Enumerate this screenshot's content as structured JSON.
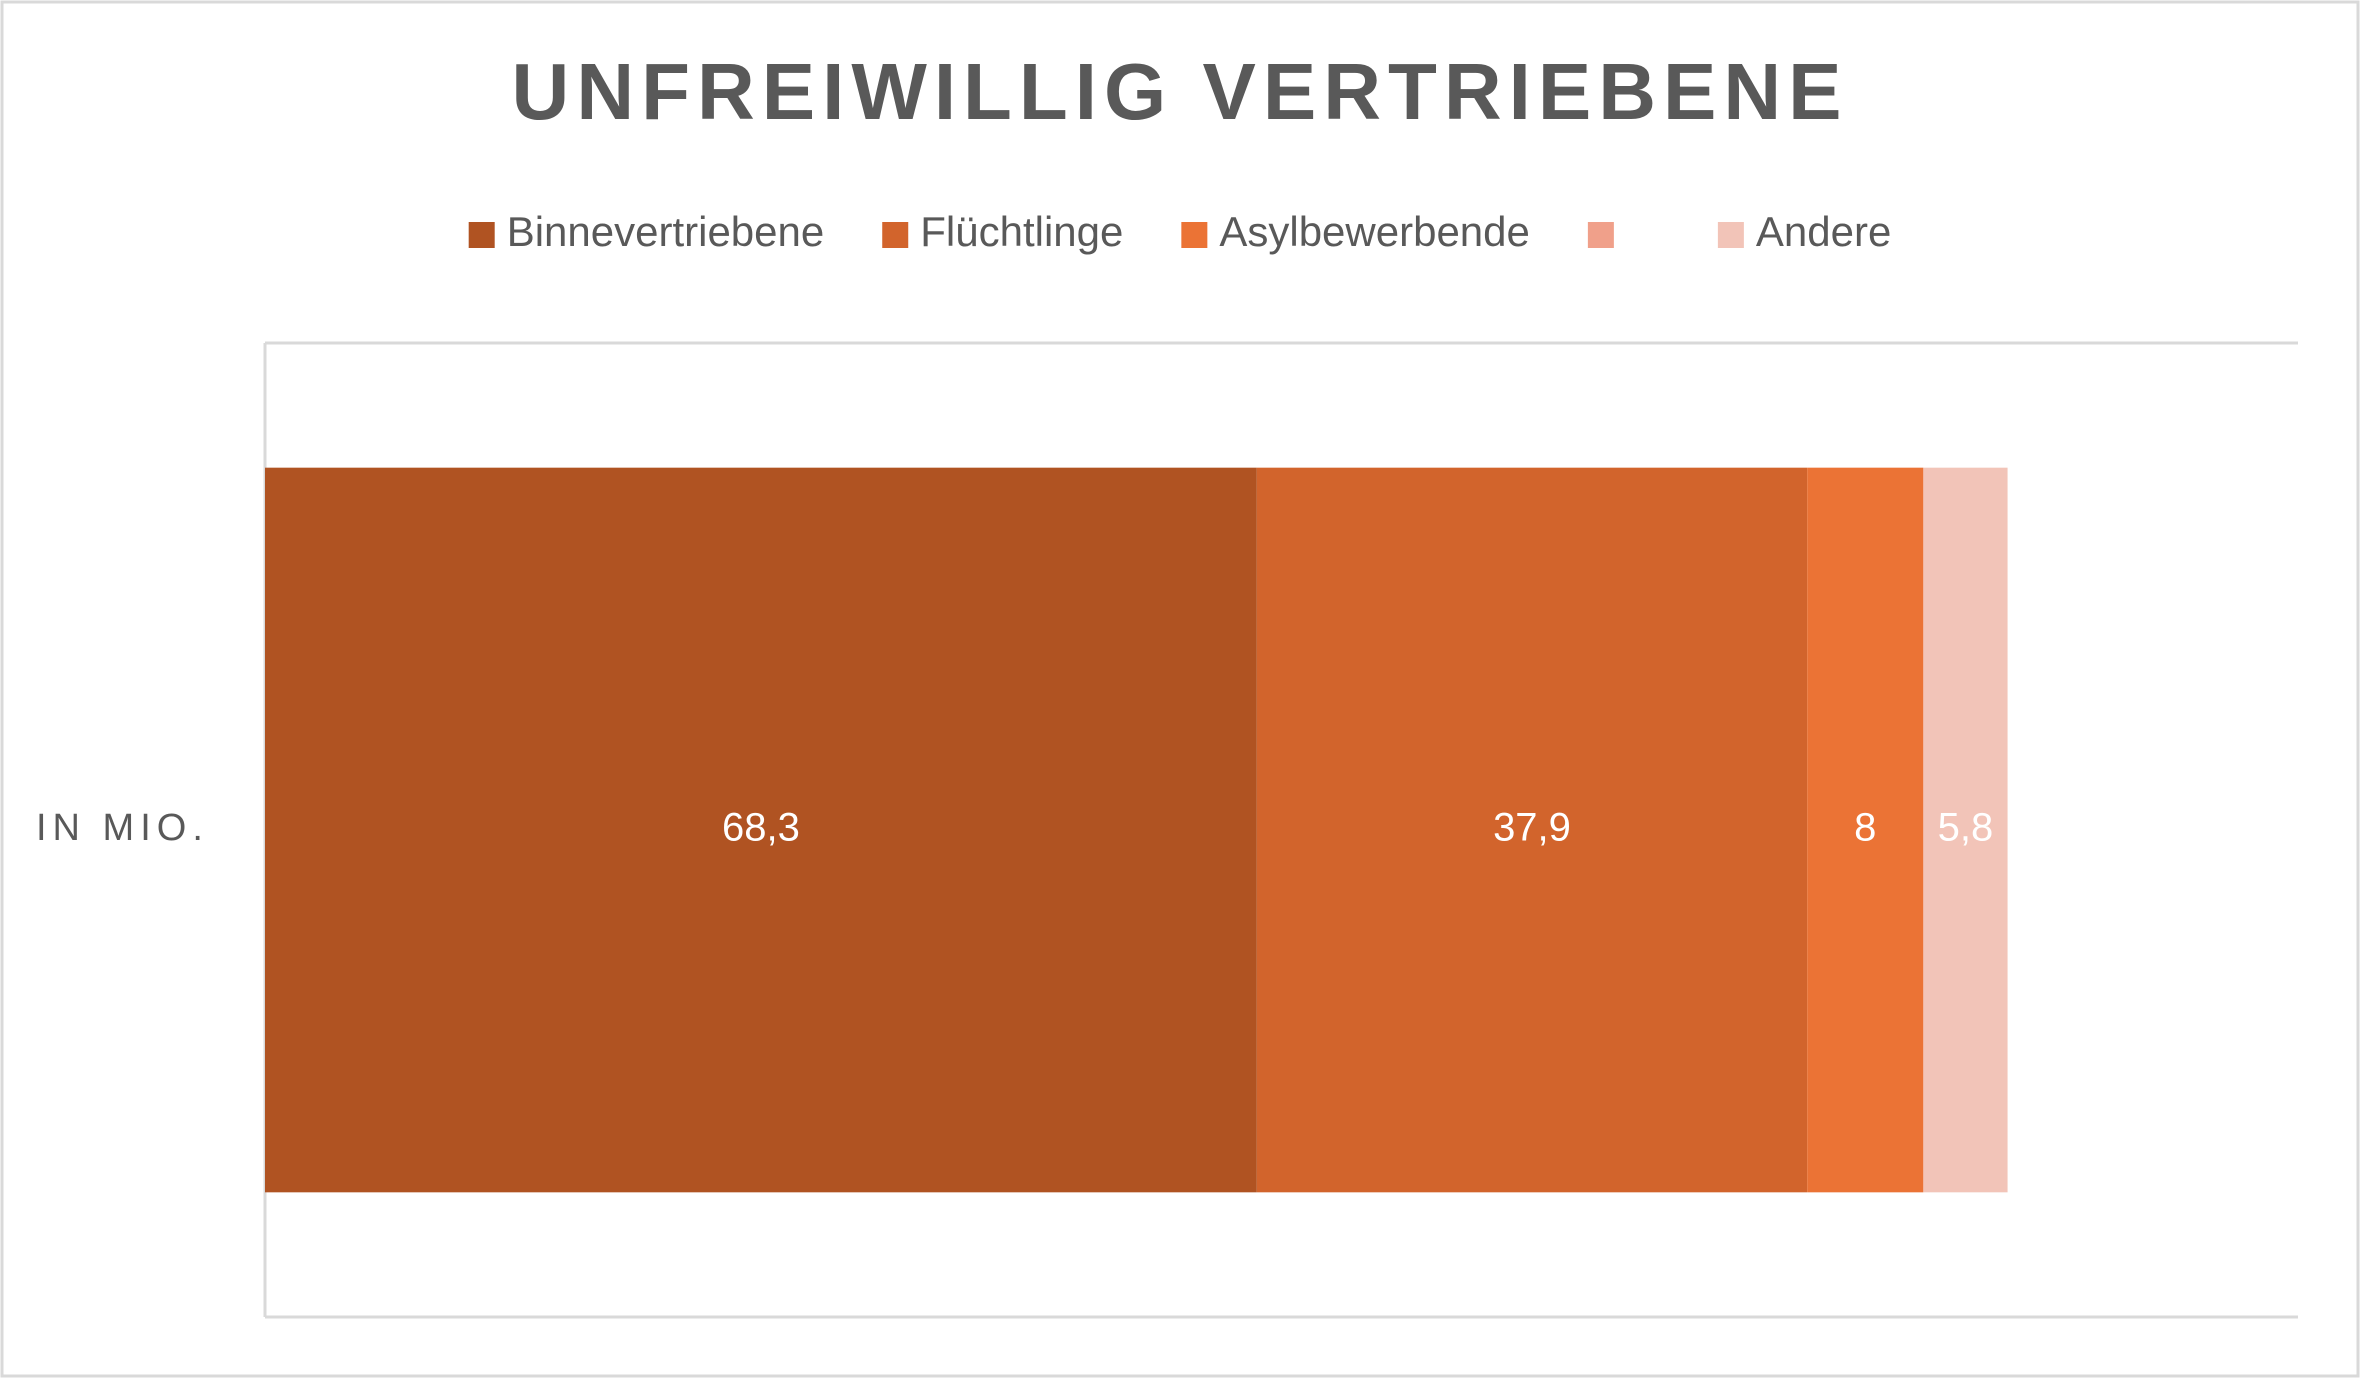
{
  "chart_data": {
    "type": "stacked-bar-horizontal",
    "title": "UNFREIWILLIG VERTRIEBENE",
    "categories": [
      "IN MIO."
    ],
    "series": [
      {
        "name": "Binnevertriebene",
        "color": "#b05322",
        "values": [
          68.3
        ],
        "value_labels": [
          "68,3"
        ]
      },
      {
        "name": "Flüchtlinge",
        "color": "#d2642c",
        "values": [
          37.9
        ],
        "value_labels": [
          "37,9"
        ]
      },
      {
        "name": "Asylbewerbende",
        "color": "#eb7335",
        "values": [
          8
        ],
        "value_labels": [
          "8"
        ]
      },
      {
        "name": null,
        "color": "#f0a08a",
        "values": [
          null
        ]
      },
      {
        "name": "Andere",
        "color": "#f2c4b8",
        "values": [
          5.8
        ],
        "value_labels": [
          "5,8"
        ]
      }
    ],
    "xlim": [
      0,
      140
    ],
    "legend": "top"
  }
}
